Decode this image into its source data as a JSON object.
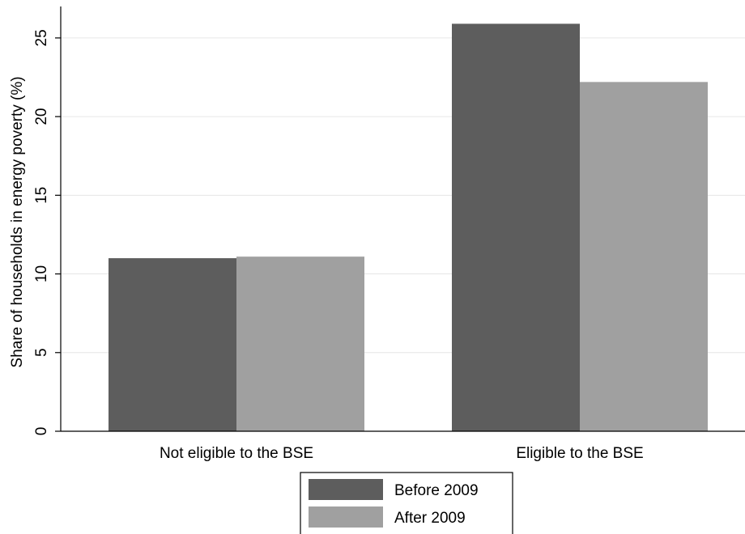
{
  "chart_data": {
    "type": "bar",
    "categories": [
      "Not eligible to the BSE",
      "Eligible to the BSE"
    ],
    "series": [
      {
        "name": "Before 2009",
        "values": [
          11.0,
          25.9
        ],
        "color": "#5d5d5d"
      },
      {
        "name": "After 2009",
        "values": [
          11.1,
          22.2
        ],
        "color": "#a0a0a0"
      }
    ],
    "ylabel": "Share of households in energy poverty (%)",
    "xlabel": "",
    "ylim": [
      0,
      27
    ],
    "yticks": [
      0,
      5,
      10,
      15,
      20,
      25
    ],
    "grid": true,
    "legend_position": "bottom"
  }
}
